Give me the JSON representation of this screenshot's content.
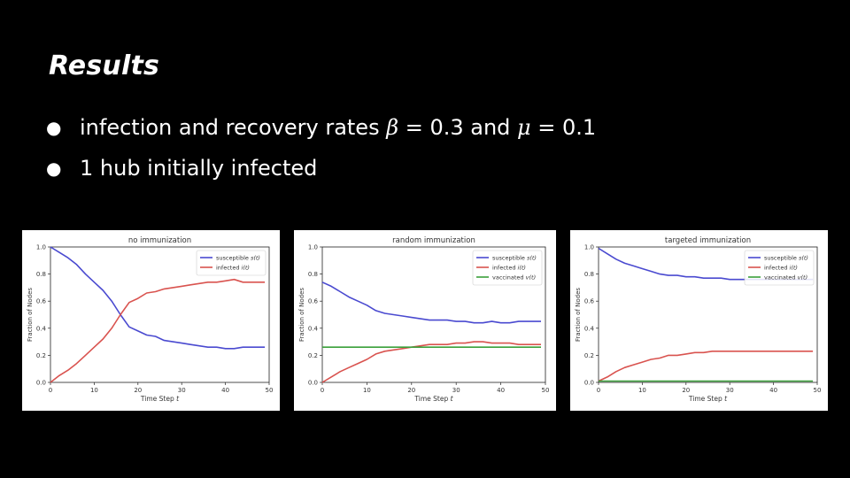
{
  "slide": {
    "title": "Results",
    "bullets": [
      {
        "parts": [
          "infection and recovery rates ",
          "β",
          " = 0.3 and ",
          "μ",
          " = 0.1"
        ]
      },
      {
        "parts": [
          "1 hub initially infected"
        ]
      }
    ]
  },
  "colors": {
    "susceptible": "#4a4ad0",
    "infected": "#d9534f",
    "vaccinated": "#3aa03a"
  },
  "chart_data": [
    {
      "type": "line",
      "title": "no immunization",
      "xlabel": "Time Step t",
      "ylabel": "Fraction of Nodes",
      "xlim": [
        0,
        50
      ],
      "ylim": [
        0,
        1.0
      ],
      "xticks": [
        0,
        10,
        20,
        30,
        40,
        50
      ],
      "yticks": [
        "0.0",
        "0.2",
        "0.4",
        "0.6",
        "0.8",
        "1.0"
      ],
      "legend_position": "top-right",
      "series": [
        {
          "name": "susceptible s(t)",
          "color": "#4a4ad0",
          "points": [
            [
              0,
              1.0
            ],
            [
              2,
              0.96
            ],
            [
              4,
              0.92
            ],
            [
              6,
              0.87
            ],
            [
              8,
              0.8
            ],
            [
              10,
              0.74
            ],
            [
              12,
              0.68
            ],
            [
              14,
              0.6
            ],
            [
              16,
              0.5
            ],
            [
              18,
              0.41
            ],
            [
              20,
              0.38
            ],
            [
              22,
              0.35
            ],
            [
              24,
              0.34
            ],
            [
              26,
              0.31
            ],
            [
              28,
              0.3
            ],
            [
              30,
              0.29
            ],
            [
              32,
              0.28
            ],
            [
              34,
              0.27
            ],
            [
              36,
              0.26
            ],
            [
              38,
              0.26
            ],
            [
              40,
              0.25
            ],
            [
              42,
              0.25
            ],
            [
              44,
              0.26
            ],
            [
              46,
              0.26
            ],
            [
              48,
              0.26
            ],
            [
              49,
              0.26
            ]
          ]
        },
        {
          "name": "infected i(t)",
          "color": "#d9534f",
          "points": [
            [
              0,
              0.0
            ],
            [
              2,
              0.05
            ],
            [
              4,
              0.09
            ],
            [
              6,
              0.14
            ],
            [
              8,
              0.2
            ],
            [
              10,
              0.26
            ],
            [
              12,
              0.32
            ],
            [
              14,
              0.4
            ],
            [
              16,
              0.5
            ],
            [
              18,
              0.59
            ],
            [
              20,
              0.62
            ],
            [
              22,
              0.66
            ],
            [
              24,
              0.67
            ],
            [
              26,
              0.69
            ],
            [
              28,
              0.7
            ],
            [
              30,
              0.71
            ],
            [
              32,
              0.72
            ],
            [
              34,
              0.73
            ],
            [
              36,
              0.74
            ],
            [
              38,
              0.74
            ],
            [
              40,
              0.75
            ],
            [
              42,
              0.76
            ],
            [
              44,
              0.74
            ],
            [
              46,
              0.74
            ],
            [
              48,
              0.74
            ],
            [
              49,
              0.74
            ]
          ]
        }
      ]
    },
    {
      "type": "line",
      "title": "random immunization",
      "xlabel": "Time Step t",
      "ylabel": "Fraction of Nodes",
      "xlim": [
        0,
        50
      ],
      "ylim": [
        0,
        1.0
      ],
      "xticks": [
        0,
        10,
        20,
        30,
        40,
        50
      ],
      "yticks": [
        "0.0",
        "0.2",
        "0.4",
        "0.6",
        "0.8",
        "1.0"
      ],
      "legend_position": "top-right",
      "series": [
        {
          "name": "susceptible s(t)",
          "color": "#4a4ad0",
          "points": [
            [
              0,
              0.74
            ],
            [
              2,
              0.71
            ],
            [
              4,
              0.67
            ],
            [
              6,
              0.63
            ],
            [
              8,
              0.6
            ],
            [
              10,
              0.57
            ],
            [
              12,
              0.53
            ],
            [
              14,
              0.51
            ],
            [
              16,
              0.5
            ],
            [
              18,
              0.49
            ],
            [
              20,
              0.48
            ],
            [
              22,
              0.47
            ],
            [
              24,
              0.46
            ],
            [
              26,
              0.46
            ],
            [
              28,
              0.46
            ],
            [
              30,
              0.45
            ],
            [
              32,
              0.45
            ],
            [
              34,
              0.44
            ],
            [
              36,
              0.44
            ],
            [
              38,
              0.45
            ],
            [
              40,
              0.44
            ],
            [
              42,
              0.44
            ],
            [
              44,
              0.45
            ],
            [
              46,
              0.45
            ],
            [
              48,
              0.45
            ],
            [
              49,
              0.45
            ]
          ]
        },
        {
          "name": "infected i(t)",
          "color": "#d9534f",
          "points": [
            [
              0,
              0.0
            ],
            [
              2,
              0.04
            ],
            [
              4,
              0.08
            ],
            [
              6,
              0.11
            ],
            [
              8,
              0.14
            ],
            [
              10,
              0.17
            ],
            [
              12,
              0.21
            ],
            [
              14,
              0.23
            ],
            [
              16,
              0.24
            ],
            [
              18,
              0.25
            ],
            [
              20,
              0.26
            ],
            [
              22,
              0.27
            ],
            [
              24,
              0.28
            ],
            [
              26,
              0.28
            ],
            [
              28,
              0.28
            ],
            [
              30,
              0.29
            ],
            [
              32,
              0.29
            ],
            [
              34,
              0.3
            ],
            [
              36,
              0.3
            ],
            [
              38,
              0.29
            ],
            [
              40,
              0.29
            ],
            [
              42,
              0.29
            ],
            [
              44,
              0.28
            ],
            [
              46,
              0.28
            ],
            [
              48,
              0.28
            ],
            [
              49,
              0.28
            ]
          ]
        },
        {
          "name": "vaccinated v(t)",
          "color": "#3aa03a",
          "points": [
            [
              0,
              0.26
            ],
            [
              49,
              0.26
            ]
          ]
        }
      ]
    },
    {
      "type": "line",
      "title": "targeted immunization",
      "xlabel": "Time Step t",
      "ylabel": "Fraction of Nodes",
      "xlim": [
        0,
        50
      ],
      "ylim": [
        0,
        1.0
      ],
      "xticks": [
        0,
        10,
        20,
        30,
        40,
        50
      ],
      "yticks": [
        "0.0",
        "0.2",
        "0.4",
        "0.6",
        "0.8",
        "1.0"
      ],
      "legend_position": "top-right",
      "series": [
        {
          "name": "susceptible s(t)",
          "color": "#4a4ad0",
          "points": [
            [
              0,
              0.99
            ],
            [
              2,
              0.95
            ],
            [
              4,
              0.91
            ],
            [
              6,
              0.88
            ],
            [
              8,
              0.86
            ],
            [
              10,
              0.84
            ],
            [
              12,
              0.82
            ],
            [
              14,
              0.8
            ],
            [
              16,
              0.79
            ],
            [
              18,
              0.79
            ],
            [
              20,
              0.78
            ],
            [
              22,
              0.78
            ],
            [
              24,
              0.77
            ],
            [
              26,
              0.77
            ],
            [
              28,
              0.77
            ],
            [
              30,
              0.76
            ],
            [
              32,
              0.76
            ],
            [
              34,
              0.76
            ],
            [
              36,
              0.76
            ],
            [
              38,
              0.76
            ],
            [
              40,
              0.76
            ],
            [
              42,
              0.76
            ],
            [
              44,
              0.76
            ],
            [
              46,
              0.76
            ],
            [
              48,
              0.76
            ],
            [
              49,
              0.76
            ]
          ]
        },
        {
          "name": "infected i(t)",
          "color": "#d9534f",
          "points": [
            [
              0,
              0.01
            ],
            [
              2,
              0.04
            ],
            [
              4,
              0.08
            ],
            [
              6,
              0.11
            ],
            [
              8,
              0.13
            ],
            [
              10,
              0.15
            ],
            [
              12,
              0.17
            ],
            [
              14,
              0.18
            ],
            [
              16,
              0.2
            ],
            [
              18,
              0.2
            ],
            [
              20,
              0.21
            ],
            [
              22,
              0.22
            ],
            [
              24,
              0.22
            ],
            [
              26,
              0.23
            ],
            [
              28,
              0.23
            ],
            [
              30,
              0.23
            ],
            [
              32,
              0.23
            ],
            [
              34,
              0.23
            ],
            [
              36,
              0.23
            ],
            [
              38,
              0.23
            ],
            [
              40,
              0.23
            ],
            [
              42,
              0.23
            ],
            [
              44,
              0.23
            ],
            [
              46,
              0.23
            ],
            [
              48,
              0.23
            ],
            [
              49,
              0.23
            ]
          ]
        },
        {
          "name": "vaccinated v(t)",
          "color": "#3aa03a",
          "points": [
            [
              0,
              0.01
            ],
            [
              49,
              0.01
            ]
          ]
        }
      ]
    }
  ]
}
